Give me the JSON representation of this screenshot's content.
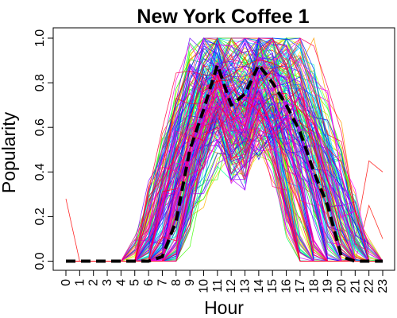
{
  "chart_data": {
    "type": "line",
    "title": "New York Coffee 1",
    "xlabel": "Hour",
    "ylabel": "Popularity",
    "x": [
      0,
      1,
      2,
      3,
      4,
      5,
      6,
      7,
      8,
      9,
      10,
      11,
      12,
      13,
      14,
      15,
      16,
      17,
      18,
      19,
      20,
      21,
      22,
      23
    ],
    "xlim": [
      0,
      23
    ],
    "ylim": [
      0,
      1
    ],
    "yticks": [
      "0.0",
      "0.2",
      "0.4",
      "0.6",
      "0.8",
      "1.0"
    ],
    "grid": false,
    "legend": "none",
    "series": [
      {
        "style": "dashed",
        "color": "#000000",
        "values": [
          0.0,
          0.0,
          0.0,
          0.0,
          0.0,
          0.0,
          0.0,
          0.02,
          0.18,
          0.5,
          0.68,
          0.88,
          0.7,
          0.75,
          0.88,
          0.8,
          0.7,
          0.58,
          0.4,
          0.25,
          0.02,
          0.0,
          0.0,
          0.0
        ]
      }
    ],
    "background_series": {
      "description_count": 220,
      "color_palette": "rainbow"
    }
  }
}
